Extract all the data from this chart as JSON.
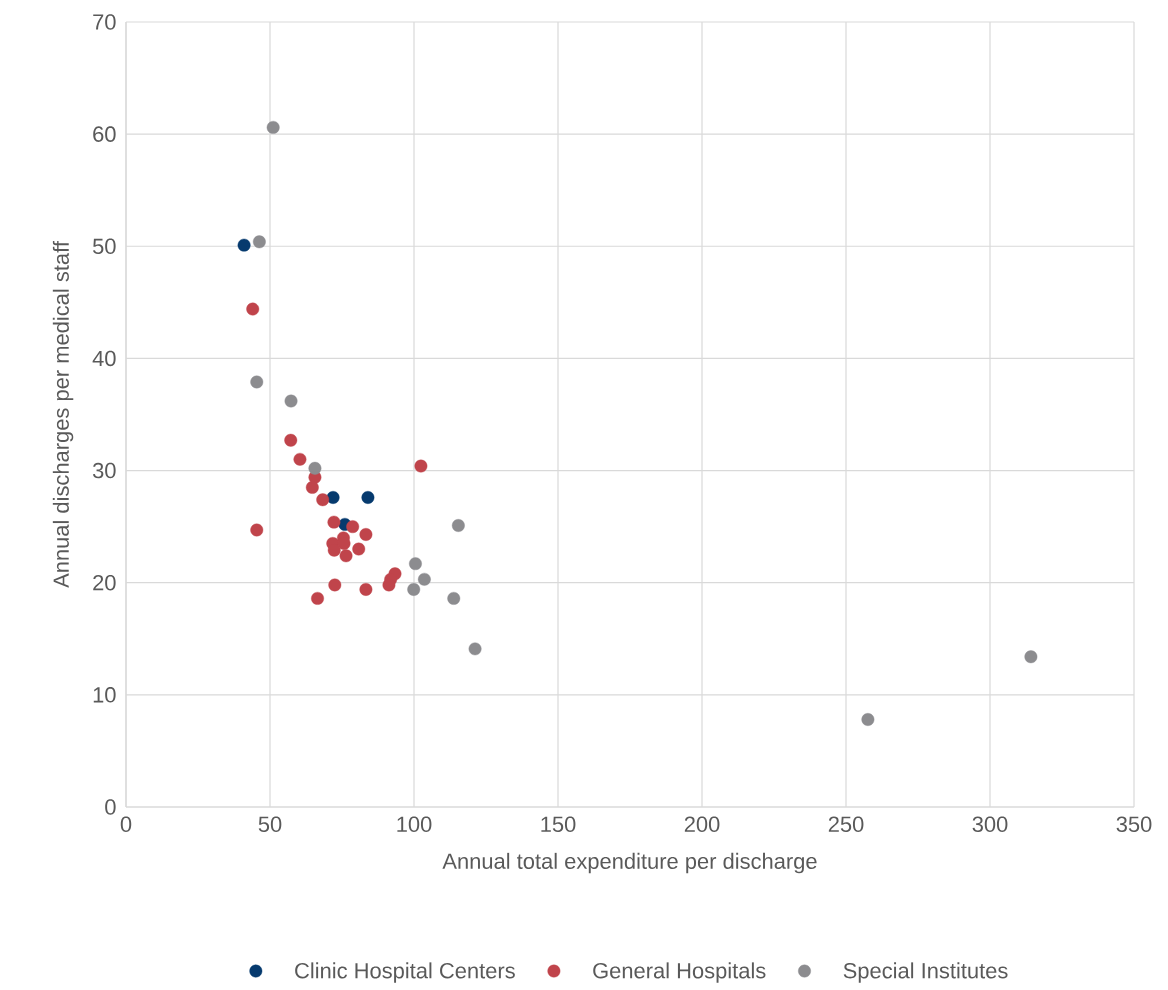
{
  "chart_data": {
    "type": "scatter",
    "xlabel": "Annual total expenditure per discharge",
    "ylabel": "Annual discharges per medical staff",
    "xlim": [
      0,
      350
    ],
    "xticks": [
      0,
      50,
      100,
      150,
      200,
      250,
      300,
      350
    ],
    "ylim": [
      0,
      70
    ],
    "yticks": [
      0,
      10,
      20,
      30,
      40,
      50,
      60,
      70
    ],
    "grid": true,
    "legend": "bottom",
    "marker": "circle",
    "series": [
      {
        "name": "Clinic Hospital Centers",
        "color": "#063a6e",
        "x": [
          41.0,
          71.9,
          84.0,
          76.0
        ],
        "values": [
          50.1,
          27.6,
          27.6,
          25.2
        ]
      },
      {
        "name": "General Hospitals",
        "color": "#c0444b",
        "x": [
          44.0,
          57.2,
          60.4,
          65.6,
          64.7,
          68.3,
          45.4,
          102.4,
          72.2,
          78.7,
          83.3,
          71.8,
          75.5,
          75.7,
          72.3,
          80.8,
          76.4,
          72.5,
          66.5,
          83.3,
          93.4,
          91.9,
          91.3
        ],
        "values": [
          44.4,
          32.7,
          31.0,
          29.4,
          28.5,
          27.4,
          24.7,
          30.4,
          25.4,
          25.0,
          24.3,
          23.5,
          24.0,
          23.5,
          22.9,
          23.0,
          22.4,
          19.8,
          18.6,
          19.4,
          20.8,
          20.3,
          19.8
        ]
      },
      {
        "name": "Special Institutes",
        "color": "#8c8c8f",
        "x": [
          51.1,
          46.3,
          45.4,
          57.3,
          65.6,
          115.4,
          100.5,
          103.6,
          99.9,
          113.8,
          121.2,
          257.6,
          314.2
        ],
        "values": [
          60.6,
          50.4,
          37.9,
          36.2,
          30.2,
          25.1,
          21.7,
          20.3,
          19.4,
          18.6,
          14.1,
          7.8,
          13.4
        ]
      }
    ]
  }
}
